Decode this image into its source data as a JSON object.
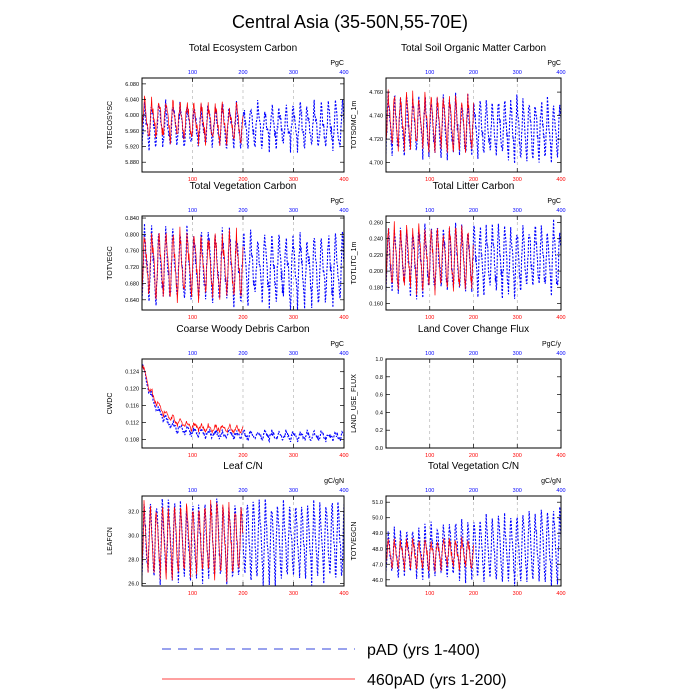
{
  "figure": {
    "title": "Central Asia (35-50N,55-70E)",
    "colors": {
      "red": "#ff0000",
      "blue": "#0000ff",
      "grid": "#aaaaaa",
      "axis": "#000000"
    }
  },
  "legend": {
    "entries": [
      {
        "label": "pAD (yrs 1-400)",
        "color": "#3344dd",
        "style": "dashed"
      },
      {
        "label": "460pAD (yrs 1-200)",
        "color": "#ff0000",
        "style": "solid"
      }
    ]
  },
  "chart_data": [
    {
      "type": "line",
      "id": "totecosysc",
      "title": "Total Ecosystem Carbon",
      "ylabel": "TOTECOSYSC",
      "units": "PgC",
      "xlim": [
        0,
        400
      ],
      "xticks": [
        100,
        200,
        300,
        400
      ],
      "top_xticks": [
        100,
        200,
        300,
        400
      ],
      "ylim": [
        5.855,
        6.095
      ],
      "yticks": [
        5.88,
        5.92,
        5.96,
        6.0,
        6.04,
        6.08
      ],
      "ytick_labels": [
        "5.880",
        "5.920",
        "5.960",
        "6.000",
        "6.040",
        "6.080"
      ],
      "grid_x": [
        100,
        200,
        300
      ],
      "series": [
        {
          "name": "pAD (yrs 1-400)",
          "color": "#0000ff",
          "dash": true,
          "start": 0,
          "end": 400,
          "base": 5.975,
          "drift": -0.004,
          "amp": 0.052,
          "period": 14,
          "noise": 0.018
        },
        {
          "name": "460pAD (yrs 1-200)",
          "color": "#ff0000",
          "dash": false,
          "start": 0,
          "end": 200,
          "base": 5.995,
          "drift": -0.02,
          "amp": 0.048,
          "period": 14,
          "noise": 0.016
        }
      ]
    },
    {
      "type": "line",
      "id": "totsomc",
      "title": "Total Soil Organic Matter Carbon",
      "ylabel": "TOTSOMC_1m",
      "units": "PgC",
      "xlim": [
        0,
        400
      ],
      "xticks": [
        100,
        200,
        300,
        400
      ],
      "top_xticks": [
        100,
        200,
        300,
        400
      ],
      "ylim": [
        4.692,
        4.772
      ],
      "yticks": [
        4.7,
        4.72,
        4.74,
        4.76
      ],
      "ytick_labels": [
        "4.700",
        "4.720",
        "4.740",
        "4.760"
      ],
      "grid_x": [
        100,
        200,
        300
      ],
      "series": [
        {
          "name": "pAD (yrs 1-400)",
          "color": "#0000ff",
          "dash": true,
          "start": 0,
          "end": 400,
          "base": 4.733,
          "drift": -0.006,
          "amp": 0.024,
          "period": 14,
          "noise": 0.006
        },
        {
          "name": "460pAD (yrs 1-200)",
          "color": "#ff0000",
          "dash": false,
          "start": 0,
          "end": 200,
          "base": 4.737,
          "drift": -0.004,
          "amp": 0.022,
          "period": 14,
          "noise": 0.005
        }
      ]
    },
    {
      "type": "line",
      "id": "totvegc",
      "title": "Total Vegetation Carbon",
      "ylabel": "TOTVEGC",
      "units": "PgC",
      "xlim": [
        0,
        400
      ],
      "xticks": [
        100,
        200,
        300,
        400
      ],
      "top_xticks": [
        100,
        200,
        300,
        400
      ],
      "ylim": [
        0.615,
        0.845
      ],
      "yticks": [
        0.64,
        0.68,
        0.72,
        0.76,
        0.8,
        0.84
      ],
      "ytick_labels": [
        "0.640",
        "0.680",
        "0.720",
        "0.760",
        "0.800",
        "0.840"
      ],
      "grid_x": [
        100,
        200,
        300
      ],
      "series": [
        {
          "name": "pAD (yrs 1-400)",
          "color": "#0000ff",
          "dash": true,
          "start": 0,
          "end": 400,
          "base": 0.725,
          "drift": -0.01,
          "amp": 0.082,
          "period": 14,
          "noise": 0.022
        },
        {
          "name": "460pAD (yrs 1-200)",
          "color": "#ff0000",
          "dash": false,
          "start": 0,
          "end": 200,
          "base": 0.728,
          "drift": -0.005,
          "amp": 0.075,
          "period": 14,
          "noise": 0.02
        }
      ]
    },
    {
      "type": "line",
      "id": "totlitc",
      "title": "Total Litter Carbon",
      "ylabel": "TOTLITC_1m",
      "units": "PgC",
      "xlim": [
        0,
        400
      ],
      "xticks": [
        100,
        200,
        300,
        400
      ],
      "top_xticks": [
        100,
        200,
        300,
        400
      ],
      "ylim": [
        0.152,
        0.268
      ],
      "yticks": [
        0.16,
        0.18,
        0.2,
        0.22,
        0.24,
        0.26
      ],
      "ytick_labels": [
        "0.160",
        "0.180",
        "0.200",
        "0.220",
        "0.240",
        "0.260"
      ],
      "grid_x": [
        100,
        200,
        300
      ],
      "series": [
        {
          "name": "pAD (yrs 1-400)",
          "color": "#0000ff",
          "dash": true,
          "start": 0,
          "end": 400,
          "base": 0.215,
          "drift": 0.0,
          "amp": 0.04,
          "period": 14,
          "noise": 0.01
        },
        {
          "name": "460pAD (yrs 1-200)",
          "color": "#ff0000",
          "dash": false,
          "start": 0,
          "end": 200,
          "base": 0.216,
          "drift": 0.0,
          "amp": 0.038,
          "period": 14,
          "noise": 0.009
        }
      ]
    },
    {
      "type": "line",
      "id": "cwdc",
      "title": "Coarse Woody Debris Carbon",
      "ylabel": "CWDC",
      "units": "PgC",
      "xlim": [
        0,
        400
      ],
      "xticks": [
        100,
        200,
        300,
        400
      ],
      "top_xticks": [
        100,
        200,
        300,
        400
      ],
      "ylim": [
        0.106,
        0.127
      ],
      "yticks": [
        0.108,
        0.112,
        0.116,
        0.12,
        0.124
      ],
      "ytick_labels": [
        "0.108",
        "0.112",
        "0.116",
        "0.120",
        "0.124"
      ],
      "grid_x": [
        100,
        200,
        300
      ],
      "series": [
        {
          "name": "pAD (yrs 1-400)",
          "color": "#0000ff",
          "dash": true,
          "start": 0,
          "end": 400,
          "decay": {
            "start_value": 0.1265,
            "end_value": 0.1095,
            "tau": 28,
            "late_slope": -2e-06
          },
          "amp": 0.0009,
          "period": 14,
          "noise": 0.0006
        },
        {
          "name": "460pAD (yrs 1-200)",
          "color": "#ff0000",
          "dash": false,
          "start": 0,
          "end": 200,
          "decay": {
            "start_value": 0.1265,
            "end_value": 0.1108,
            "tau": 30,
            "late_slope": -2e-06
          },
          "amp": 0.0008,
          "period": 14,
          "noise": 0.0005
        }
      ]
    },
    {
      "type": "line",
      "id": "land_use_flux",
      "title": "Land Cover Change Flux",
      "ylabel": "LAND_USE_FLUX",
      "units": "PgC/y",
      "xlim": [
        0,
        400
      ],
      "xticks": [
        100,
        200,
        300,
        400
      ],
      "top_xticks": [
        100,
        200,
        300,
        400
      ],
      "ylim": [
        0.0,
        1.0
      ],
      "yticks": [
        0.0,
        0.2,
        0.4,
        0.6,
        0.8,
        1.0
      ],
      "ytick_labels": [
        "0.0",
        "0.2",
        "0.4",
        "0.6",
        "0.8",
        "1.0"
      ],
      "grid_x": [
        100,
        200,
        300
      ],
      "series": []
    },
    {
      "type": "line",
      "id": "leafcn",
      "title": "Leaf C/N",
      "ylabel": "LEAFCN",
      "units": "gC/gN",
      "xlim": [
        0,
        400
      ],
      "xticks": [
        100,
        200,
        300,
        400
      ],
      "top_xticks": [
        100,
        200,
        300,
        400
      ],
      "ylim": [
        25.8,
        33.3
      ],
      "yticks": [
        26.0,
        28.0,
        30.0,
        32.0
      ],
      "ytick_labels": [
        "26.0",
        "28.0",
        "30.0",
        "32.0"
      ],
      "grid_x": [
        100,
        200,
        300
      ],
      "series": [
        {
          "name": "pAD (yrs 1-400)",
          "color": "#0000ff",
          "dash": true,
          "start": 0,
          "end": 400,
          "base": 29.6,
          "drift": 0.0,
          "amp": 3.2,
          "period": 12,
          "noise": 0.6
        },
        {
          "name": "460pAD (yrs 1-200)",
          "color": "#ff0000",
          "dash": false,
          "start": 0,
          "end": 200,
          "base": 29.7,
          "drift": 0.0,
          "amp": 3.0,
          "period": 12,
          "noise": 0.6
        }
      ]
    },
    {
      "type": "line",
      "id": "totvegcn",
      "title": "Total Vegetation C/N",
      "ylabel": "TOTVEGCN",
      "units": "gC/gN",
      "xlim": [
        0,
        400
      ],
      "xticks": [
        100,
        200,
        300,
        400
      ],
      "top_xticks": [
        100,
        200,
        300,
        400
      ],
      "ylim": [
        45.6,
        51.4
      ],
      "yticks": [
        46.0,
        47.0,
        48.0,
        49.0,
        50.0,
        51.0
      ],
      "ytick_labels": [
        "46.0",
        "47.0",
        "48.0",
        "49.0",
        "50.0",
        "51.0"
      ],
      "grid_x": [
        100,
        200,
        300
      ],
      "series": [
        {
          "name": "pAD (yrs 1-400)",
          "color": "#0000ff",
          "dash": true,
          "start": 0,
          "end": 400,
          "base": 47.7,
          "drift": 0.5,
          "amp": 1.35,
          "period": 14,
          "noise": 0.35,
          "amp_growth": 0.8
        },
        {
          "name": "460pAD (yrs 1-200)",
          "color": "#ff0000",
          "dash": false,
          "start": 0,
          "end": 200,
          "base": 47.7,
          "drift": 0.0,
          "amp": 0.9,
          "period": 14,
          "noise": 0.3
        }
      ]
    }
  ]
}
